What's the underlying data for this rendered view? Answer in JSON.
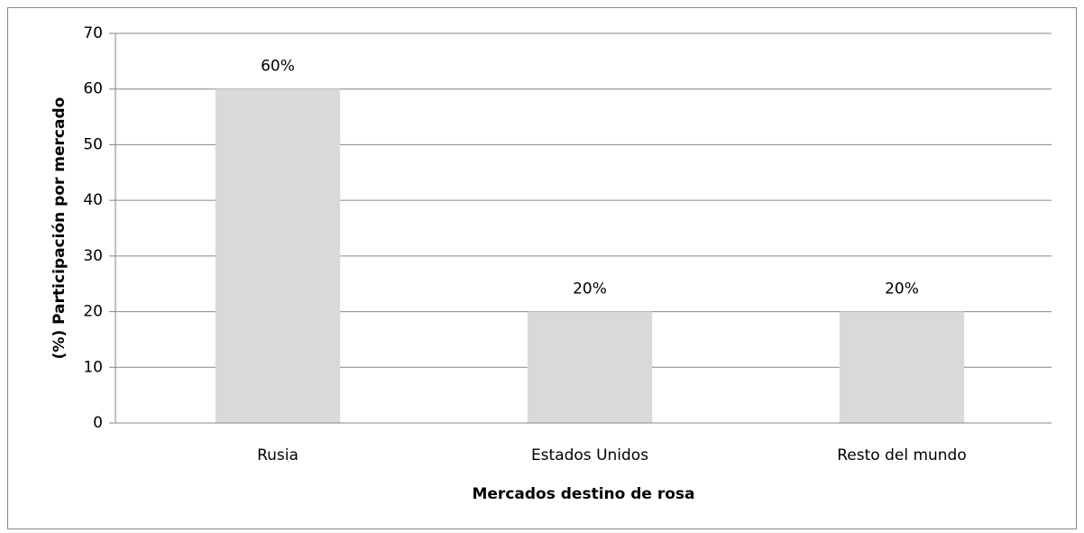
{
  "chart_data": {
    "type": "bar",
    "categories": [
      "Rusia",
      "Estados Unidos",
      "Resto del mundo"
    ],
    "values": [
      60,
      20,
      20
    ],
    "value_labels": [
      "60%",
      "20%",
      "20%"
    ],
    "color": "#d9d9d9",
    "ylim": [
      0,
      70
    ],
    "yticks": [
      0,
      10,
      20,
      30,
      40,
      50,
      60,
      70
    ],
    "grid": true,
    "x_label": "Mercados destino de rosa",
    "y_label": "(%) Participación por mercado"
  }
}
